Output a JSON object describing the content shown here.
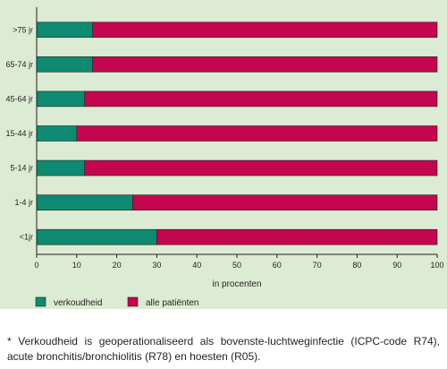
{
  "chart_data": {
    "type": "bar",
    "orientation": "horizontal",
    "stacked": true,
    "title": "",
    "xlabel": "in procenten",
    "ylabel": "",
    "xlim": [
      0,
      100
    ],
    "x_ticks": [
      "0",
      "10",
      "20",
      "30",
      "40",
      "50",
      "60",
      "70",
      "80",
      "90",
      "100"
    ],
    "categories": [
      ">75 jr",
      "65-74 jr",
      "45-64 jr",
      "15-44 jr",
      "5-14 jr",
      "1-4 jr",
      "<1jr"
    ],
    "series": [
      {
        "name": "verkoudheid",
        "values": [
          14,
          14,
          12,
          10,
          12,
          24,
          30
        ]
      },
      {
        "name": "alle patiënten",
        "values": [
          86,
          86,
          88,
          90,
          88,
          76,
          70
        ]
      }
    ],
    "legend_position": "bottom-left",
    "grid": false
  },
  "colors": {
    "verkoudheid": "#0f8a72",
    "alle_patienten": "#c4064e",
    "chart_background": "#dcebd3"
  },
  "footnote": "* Verkoudheid is geoperationaliseerd als bovenste-luchtweginfectie (ICPC-code R74), acute bronchitis/bronchiolitis (R78) en hoesten (R05)."
}
